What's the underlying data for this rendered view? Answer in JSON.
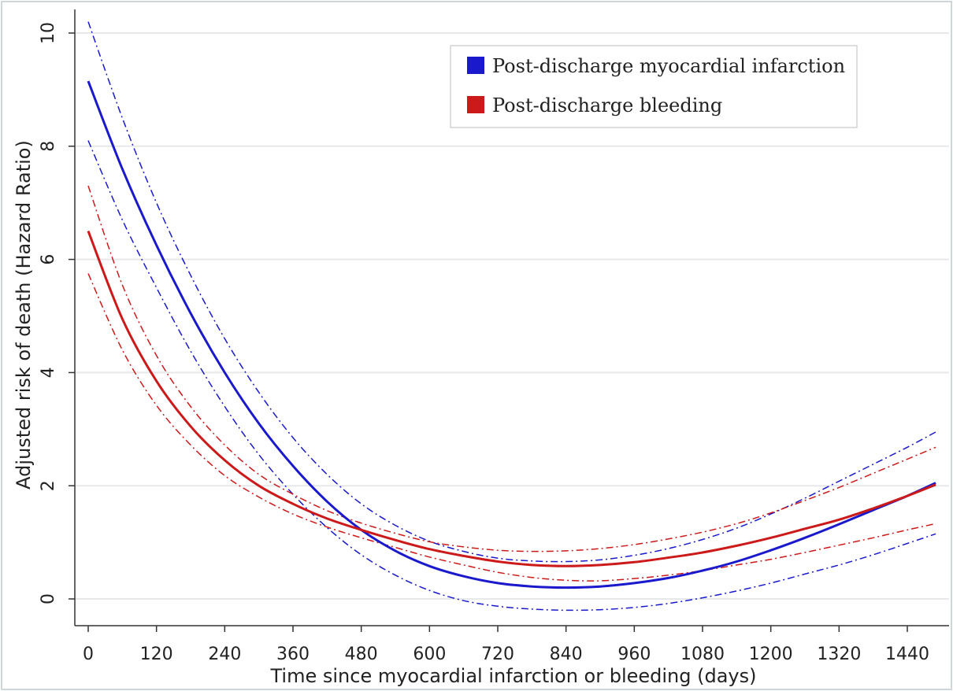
{
  "chart_data": {
    "type": "line",
    "xlabel": "Time since myocardial infarction or bleeding (days)",
    "ylabel": "Adjusted risk of death (Hazard Ratio)",
    "xlim": [
      0,
      1490
    ],
    "ylim": [
      0,
      10
    ],
    "xticks": [
      0,
      120,
      240,
      360,
      480,
      600,
      720,
      840,
      960,
      1080,
      1200,
      1320,
      1440
    ],
    "yticks": [
      0,
      2,
      4,
      6,
      8,
      10
    ],
    "grid": "horizontal",
    "legend_position": "top-right",
    "series": [
      {
        "name": "Post-discharge myocardial infarction",
        "color": "#1a1acc",
        "style": "solid",
        "x": [
          0,
          60,
          120,
          180,
          240,
          300,
          360,
          420,
          480,
          540,
          600,
          660,
          720,
          780,
          840,
          900,
          960,
          1020,
          1080,
          1140,
          1200,
          1260,
          1320,
          1380,
          1440,
          1490
        ],
        "y": [
          9.15,
          7.6,
          6.25,
          5.05,
          4.0,
          3.1,
          2.35,
          1.72,
          1.22,
          0.85,
          0.58,
          0.4,
          0.28,
          0.22,
          0.2,
          0.22,
          0.28,
          0.37,
          0.5,
          0.66,
          0.86,
          1.08,
          1.32,
          1.57,
          1.82,
          2.05
        ]
      },
      {
        "name": "Post-discharge bleeding",
        "color": "#cc1a1a",
        "style": "solid",
        "x": [
          0,
          60,
          120,
          180,
          240,
          300,
          360,
          420,
          480,
          540,
          600,
          660,
          720,
          780,
          840,
          900,
          960,
          1020,
          1080,
          1140,
          1200,
          1260,
          1320,
          1380,
          1440,
          1490
        ],
        "y": [
          6.5,
          4.95,
          3.85,
          3.05,
          2.45,
          2.0,
          1.68,
          1.42,
          1.22,
          1.04,
          0.88,
          0.76,
          0.66,
          0.6,
          0.58,
          0.6,
          0.65,
          0.73,
          0.82,
          0.94,
          1.08,
          1.24,
          1.4,
          1.6,
          1.82,
          2.02
        ]
      }
    ],
    "confidence_bands": [
      {
        "series": "Post-discharge myocardial infarction",
        "color": "#1a1acc",
        "x": [
          0,
          60,
          120,
          180,
          240,
          300,
          360,
          420,
          480,
          540,
          600,
          660,
          720,
          780,
          840,
          900,
          960,
          1020,
          1080,
          1140,
          1200,
          1260,
          1320,
          1380,
          1440,
          1490
        ],
        "upper": [
          10.2,
          8.5,
          7.0,
          5.72,
          4.6,
          3.65,
          2.85,
          2.2,
          1.68,
          1.3,
          1.02,
          0.84,
          0.72,
          0.67,
          0.66,
          0.69,
          0.77,
          0.89,
          1.05,
          1.25,
          1.5,
          1.78,
          2.08,
          2.38,
          2.68,
          2.95
        ],
        "lower": [
          8.1,
          6.7,
          5.5,
          4.38,
          3.4,
          2.55,
          1.85,
          1.26,
          0.78,
          0.42,
          0.15,
          -0.03,
          -0.13,
          -0.18,
          -0.2,
          -0.19,
          -0.15,
          -0.08,
          0.02,
          0.14,
          0.28,
          0.44,
          0.6,
          0.78,
          0.98,
          1.15
        ]
      },
      {
        "series": "Post-discharge bleeding",
        "color": "#cc1a1a",
        "x": [
          0,
          60,
          120,
          180,
          240,
          300,
          360,
          420,
          480,
          540,
          600,
          660,
          720,
          780,
          840,
          900,
          960,
          1020,
          1080,
          1140,
          1200,
          1260,
          1320,
          1380,
          1440,
          1490
        ],
        "upper": [
          7.3,
          5.55,
          4.3,
          3.4,
          2.72,
          2.2,
          1.85,
          1.56,
          1.34,
          1.16,
          1.01,
          0.92,
          0.86,
          0.84,
          0.85,
          0.89,
          0.96,
          1.06,
          1.18,
          1.33,
          1.52,
          1.74,
          1.97,
          2.22,
          2.47,
          2.68
        ],
        "lower": [
          5.75,
          4.4,
          3.42,
          2.72,
          2.18,
          1.8,
          1.5,
          1.27,
          1.08,
          0.91,
          0.74,
          0.6,
          0.47,
          0.38,
          0.33,
          0.32,
          0.36,
          0.42,
          0.5,
          0.6,
          0.7,
          0.82,
          0.95,
          1.08,
          1.22,
          1.33
        ]
      }
    ],
    "legend": [
      {
        "label": "Post-discharge myocardial infarction",
        "color": "#1a1acc"
      },
      {
        "label": "Post-discharge bleeding",
        "color": "#cc1a1a"
      }
    ]
  }
}
